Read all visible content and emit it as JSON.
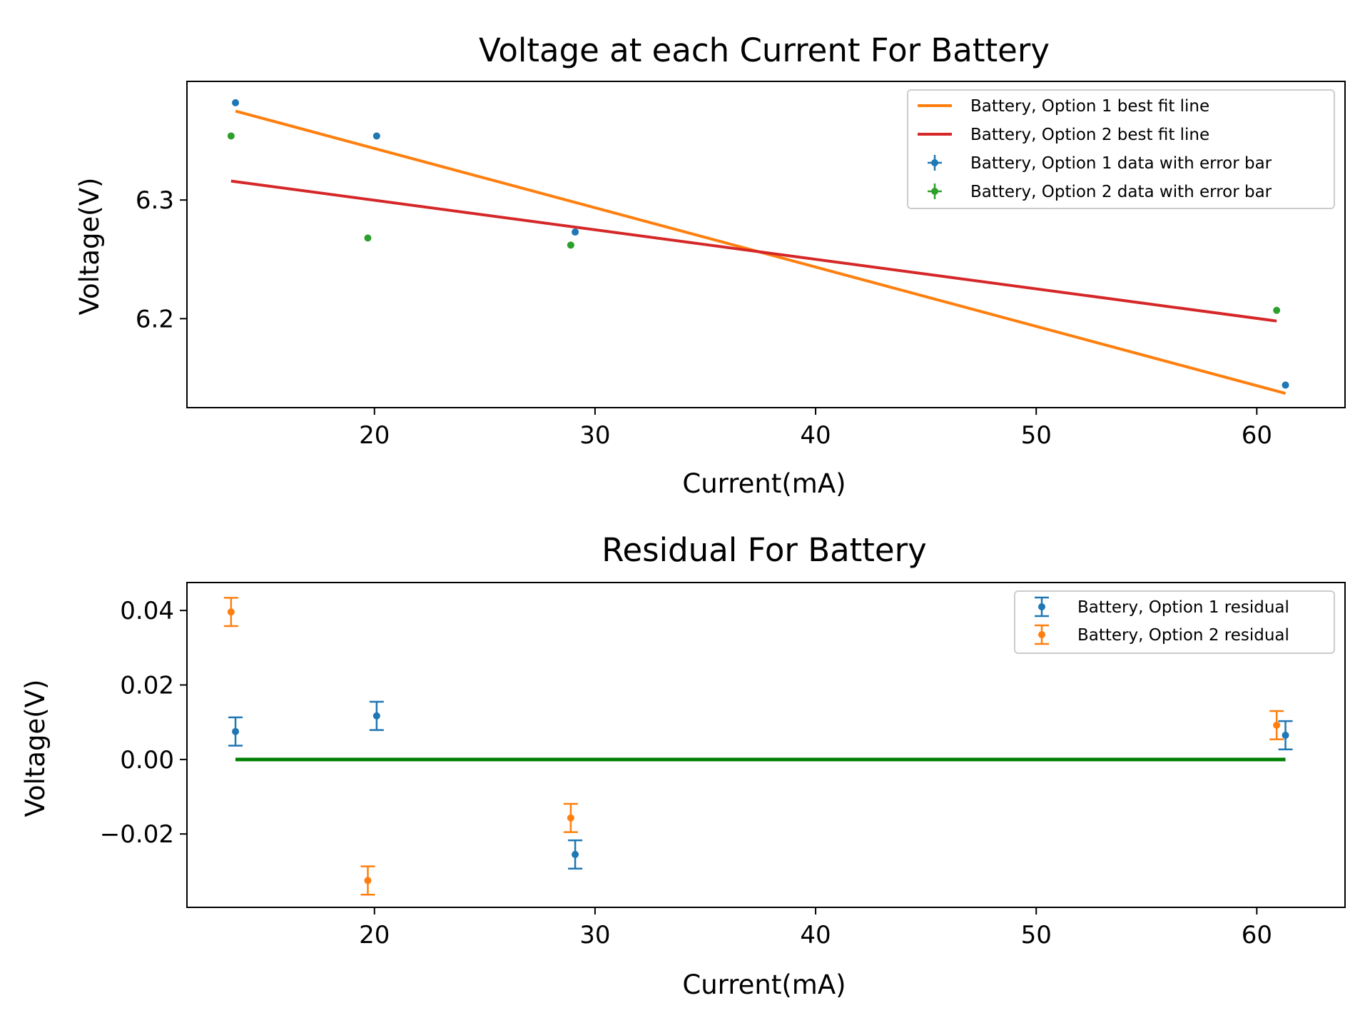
{
  "chart_data": [
    {
      "type": "scatter",
      "title": "Voltage at each Current For Battery",
      "xlabel": "Current(mA)",
      "ylabel": "Voltage(V)",
      "xlim": [
        11.5,
        64.0
      ],
      "ylim": [
        6.125,
        6.4
      ],
      "x_ticks": [
        20,
        30,
        40,
        50,
        60
      ],
      "x_tick_labels": [
        "20",
        "30",
        "40",
        "50",
        "60"
      ],
      "y_ticks": [
        6.2,
        6.3
      ],
      "y_tick_labels": [
        "6.2",
        "6.3"
      ],
      "grid": false,
      "legend_position": "top-right",
      "series": [
        {
          "name": "Battery, Option 1 best fit line",
          "kind": "line",
          "color": "#ff7f0e",
          "x": [
            13.7,
            61.3
          ],
          "y": [
            6.375,
            6.137
          ]
        },
        {
          "name": "Battery, Option 2 best fit line",
          "kind": "line",
          "color": "#d62728",
          "x": [
            13.5,
            60.9
          ],
          "y": [
            6.316,
            6.198
          ]
        },
        {
          "name": "Battery, Option 1 data with error bar",
          "kind": "scatter",
          "color": "#1f77b4",
          "x": [
            13.7,
            20.1,
            29.1,
            61.3
          ],
          "y": [
            6.382,
            6.354,
            6.273,
            6.144
          ]
        },
        {
          "name": "Battery, Option 2 data with error bar",
          "kind": "scatter",
          "color": "#2ca02c",
          "x": [
            13.5,
            19.7,
            28.9,
            60.9
          ],
          "y": [
            6.354,
            6.268,
            6.262,
            6.207
          ]
        }
      ]
    },
    {
      "type": "scatter",
      "title": "Residual For Battery",
      "xlabel": "Current(mA)",
      "ylabel": "Voltage(V)",
      "xlim": [
        11.5,
        64.0
      ],
      "ylim": [
        -0.0397,
        0.0475
      ],
      "x_ticks": [
        20,
        30,
        40,
        50,
        60
      ],
      "x_tick_labels": [
        "20",
        "30",
        "40",
        "50",
        "60"
      ],
      "y_ticks": [
        -0.02,
        0.0,
        0.02,
        0.04
      ],
      "y_tick_labels": [
        "−0.02",
        "0.00",
        "0.02",
        "0.04"
      ],
      "grid": false,
      "legend_position": "top-right",
      "zero_line": {
        "color": "#008000",
        "x": [
          13.7,
          61.3
        ],
        "y": [
          0.0,
          0.0
        ]
      },
      "series": [
        {
          "name": "Battery, Option 1 residual",
          "kind": "errorbar",
          "color": "#1f77b4",
          "x": [
            13.7,
            20.1,
            29.1,
            61.3
          ],
          "y": [
            0.0075,
            0.0117,
            -0.0255,
            0.0065
          ],
          "yerr": 0.0038
        },
        {
          "name": "Battery, Option 2 residual",
          "kind": "errorbar",
          "color": "#ff7f0e",
          "x": [
            13.5,
            19.7,
            28.9,
            60.9
          ],
          "y": [
            0.0396,
            -0.0325,
            -0.0157,
            0.0092
          ],
          "yerr": 0.0038
        }
      ]
    }
  ]
}
